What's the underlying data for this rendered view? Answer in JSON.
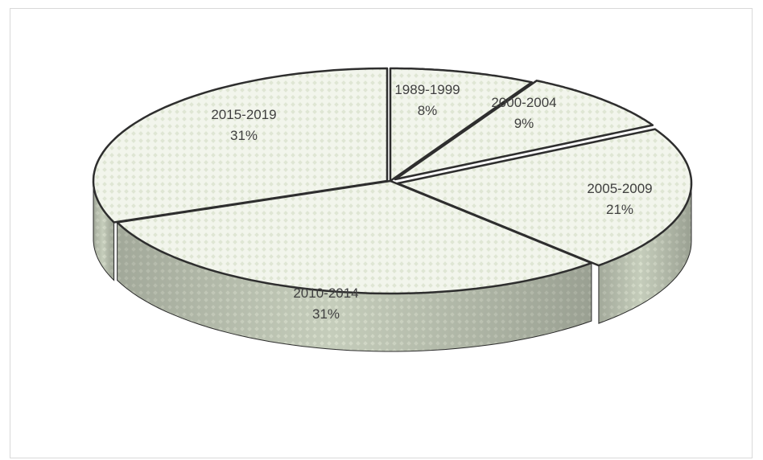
{
  "chart_data": {
    "type": "pie",
    "style": "3d-exploded",
    "title": "",
    "slices": [
      {
        "label": "1989-1999",
        "value": 8,
        "pct_label": "8%"
      },
      {
        "label": "2000-2004",
        "value": 9,
        "pct_label": "9%"
      },
      {
        "label": "2005-2009",
        "value": 21,
        "pct_label": "21%"
      },
      {
        "label": "2010-2014",
        "value": 31,
        "pct_label": "31%"
      },
      {
        "label": "2015-2019",
        "value": 31,
        "pct_label": "31%"
      }
    ],
    "colors": {
      "top_fill": "#f2f5ec",
      "side_fill": "#c5cdbb",
      "pattern_dot": "#dfe6d4",
      "edge": "#2e2e2e"
    },
    "legend": "none",
    "data_labels": "category and percentage"
  }
}
